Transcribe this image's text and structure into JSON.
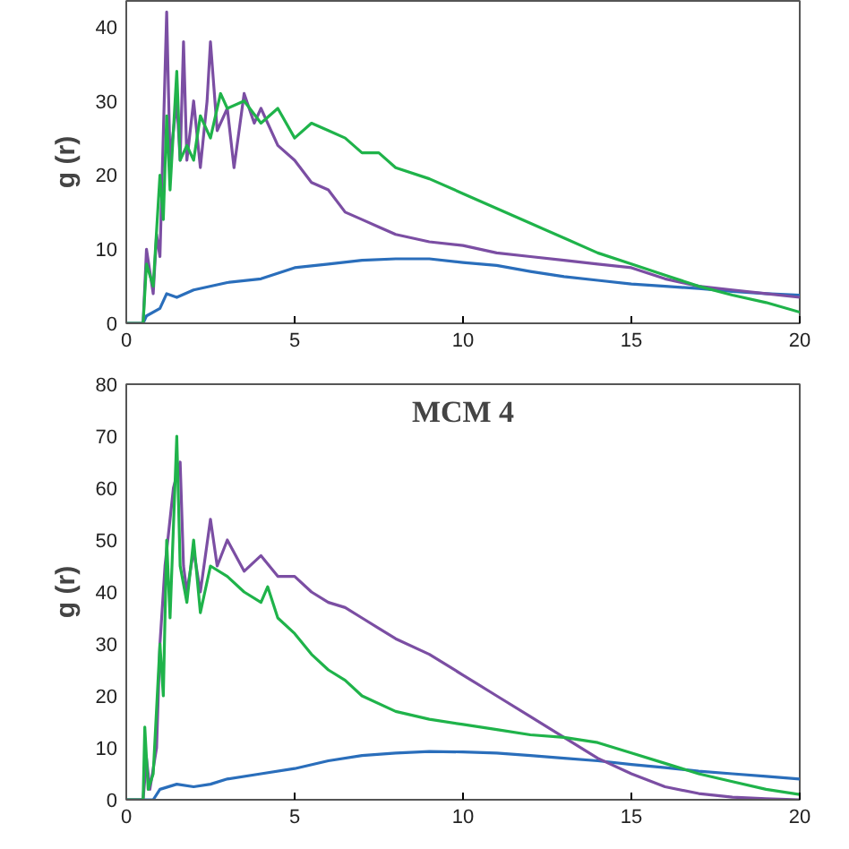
{
  "chart_data": [
    {
      "type": "line",
      "ylabel": "g (r)",
      "xlim": [
        0,
        20
      ],
      "xticks": [
        0,
        5,
        10,
        15,
        20
      ],
      "ylim": [
        0,
        43.5
      ],
      "yticks": [
        0,
        10,
        20,
        30,
        40
      ],
      "grid": false,
      "series": [
        {
          "color": "#2a6ebb",
          "x": [
            0,
            0.5,
            0.6,
            1,
            1.2,
            1.5,
            2,
            3,
            4,
            5,
            6,
            7,
            8,
            9,
            10,
            11,
            12,
            13,
            14,
            15,
            16,
            17,
            18,
            19,
            20
          ],
          "values": [
            0,
            0,
            1,
            2,
            4,
            3.5,
            4.5,
            5.5,
            6,
            7.5,
            8,
            8.5,
            8.7,
            8.7,
            8.2,
            7.8,
            7,
            6.3,
            5.8,
            5.3,
            5,
            4.7,
            4.3,
            4,
            3.8
          ]
        },
        {
          "color": "#7b4ea3",
          "x": [
            0,
            0.5,
            0.6,
            0.8,
            0.9,
            1,
            1.2,
            1.3,
            1.5,
            1.6,
            1.7,
            1.8,
            2,
            2.2,
            2.4,
            2.5,
            2.7,
            3,
            3.2,
            3.5,
            3.8,
            4,
            4.5,
            5,
            5.5,
            6,
            6.5,
            7,
            7.5,
            8,
            9,
            10,
            11,
            12,
            13,
            14,
            15,
            16,
            17,
            18,
            19,
            20
          ],
          "values": [
            0,
            0,
            10,
            4,
            12,
            9,
            42,
            22,
            30,
            22,
            38,
            22,
            30,
            21,
            30,
            38,
            26,
            29,
            21,
            31,
            27,
            29,
            24,
            22,
            19,
            18,
            15,
            14,
            13,
            12,
            11,
            10.5,
            9.5,
            9,
            8.5,
            8,
            7.5,
            6,
            5,
            4.5,
            4,
            3.5
          ]
        },
        {
          "color": "#1fb34a",
          "x": [
            0,
            0.5,
            0.6,
            0.8,
            1,
            1.1,
            1.2,
            1.3,
            1.5,
            1.6,
            1.8,
            2,
            2.2,
            2.5,
            2.8,
            3,
            3.5,
            4,
            4.5,
            5,
            5.5,
            6,
            6.5,
            7,
            7.5,
            8,
            9,
            10,
            11,
            12,
            13,
            14,
            15,
            16,
            17,
            18,
            19,
            20
          ],
          "values": [
            0,
            0,
            8,
            5,
            20,
            14,
            28,
            18,
            34,
            22,
            24,
            22,
            28,
            25,
            31,
            29,
            30,
            27,
            29,
            25,
            27,
            26,
            25,
            23,
            23,
            21,
            19.5,
            17.5,
            15.5,
            13.5,
            11.5,
            9.5,
            8,
            6.5,
            5,
            3.8,
            2.8,
            1.5
          ]
        }
      ]
    },
    {
      "type": "line",
      "title": "MCM 4",
      "ylabel": "g (r)",
      "xlim": [
        0,
        20
      ],
      "xticks": [
        0,
        5,
        10,
        15,
        20
      ],
      "ylim": [
        0,
        80
      ],
      "yticks": [
        0,
        10,
        20,
        30,
        40,
        50,
        60,
        70,
        80
      ],
      "grid": false,
      "series": [
        {
          "color": "#2a6ebb",
          "x": [
            0,
            0.8,
            1,
            1.5,
            2,
            2.5,
            3,
            4,
            5,
            6,
            7,
            8,
            9,
            10,
            11,
            12,
            13,
            14,
            15,
            16,
            17,
            18,
            19,
            20
          ],
          "values": [
            0,
            0,
            2,
            3,
            2.5,
            3,
            4,
            5,
            6,
            7.5,
            8.5,
            9,
            9.3,
            9.2,
            9,
            8.5,
            8,
            7.5,
            6.8,
            6.2,
            5.5,
            5,
            4.5,
            4
          ]
        },
        {
          "color": "#7b4ea3",
          "x": [
            0,
            0.5,
            0.6,
            0.7,
            0.9,
            1,
            1.15,
            1.4,
            1.6,
            1.7,
            1.8,
            2,
            2.2,
            2.5,
            2.7,
            3,
            3.5,
            4,
            4.5,
            5,
            5.5,
            6,
            6.5,
            7,
            7.5,
            8,
            9,
            10,
            11,
            12,
            13,
            14,
            15,
            16,
            17,
            18,
            19,
            20
          ],
          "values": [
            0,
            0,
            8,
            2,
            10,
            30,
            45,
            60,
            65,
            45,
            40,
            48,
            40,
            54,
            45,
            50,
            44,
            47,
            43,
            43,
            40,
            38,
            37,
            35,
            33,
            31,
            28,
            24,
            20,
            16,
            12,
            8,
            5,
            2.5,
            1.2,
            0.5,
            0.2,
            0
          ]
        },
        {
          "color": "#1fb34a",
          "x": [
            0,
            0.5,
            0.55,
            0.65,
            0.8,
            1,
            1.1,
            1.2,
            1.3,
            1.5,
            1.6,
            1.8,
            2,
            2.2,
            2.5,
            3,
            3.5,
            4,
            4.2,
            4.5,
            5,
            5.5,
            6,
            6.5,
            7,
            8,
            9,
            10,
            11,
            12,
            13,
            14,
            15,
            16,
            17,
            18,
            19,
            20
          ],
          "values": [
            0,
            0,
            14,
            2,
            5,
            30,
            20,
            50,
            35,
            70,
            45,
            38,
            50,
            36,
            45,
            43,
            40,
            38,
            41,
            35,
            32,
            28,
            25,
            23,
            20,
            17,
            15.5,
            14.5,
            13.5,
            12.5,
            12,
            11,
            9,
            7,
            5,
            3.5,
            2,
            1
          ]
        }
      ]
    }
  ]
}
